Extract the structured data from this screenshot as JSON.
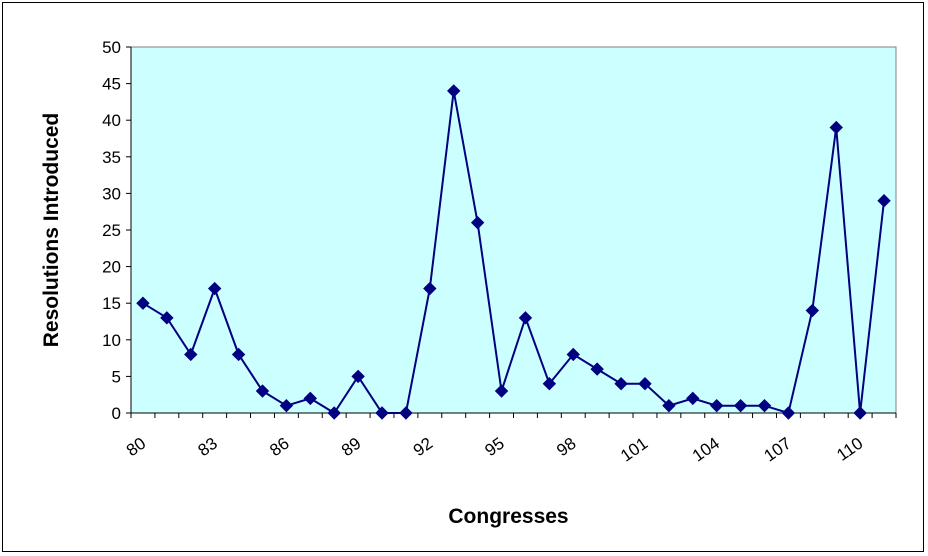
{
  "chart_data": {
    "type": "line",
    "title": "",
    "xlabel": "Congresses",
    "ylabel": "Resolutions Introduced",
    "x": [
      80,
      81,
      82,
      83,
      84,
      85,
      86,
      87,
      88,
      89,
      90,
      91,
      92,
      93,
      94,
      95,
      96,
      97,
      98,
      99,
      100,
      101,
      102,
      103,
      104,
      105,
      106,
      107,
      108,
      109,
      110,
      111
    ],
    "x_tick_labels": [
      "80",
      "83",
      "86",
      "89",
      "92",
      "95",
      "98",
      "101",
      "104",
      "107",
      "110"
    ],
    "x_tick_values": [
      80,
      83,
      86,
      89,
      92,
      95,
      98,
      101,
      104,
      107,
      110
    ],
    "y_ticks": [
      0,
      5,
      10,
      15,
      20,
      25,
      30,
      35,
      40,
      45,
      50
    ],
    "ylim": [
      0,
      50
    ],
    "xlim": [
      79.5,
      111.5
    ],
    "series": [
      {
        "values": [
          15,
          13,
          8,
          17,
          8,
          3,
          1,
          2,
          0,
          5,
          0,
          0,
          17,
          44,
          26,
          3,
          13,
          4,
          8,
          6,
          4,
          4,
          1,
          2,
          1,
          1,
          1,
          0,
          14,
          39,
          0,
          29
        ]
      }
    ],
    "colors": {
      "plot_background": "#ccffff",
      "line": "#000080",
      "marker": "#000080",
      "frame": "#000000"
    },
    "marker": "diamond",
    "grid": false,
    "legend": "none"
  }
}
